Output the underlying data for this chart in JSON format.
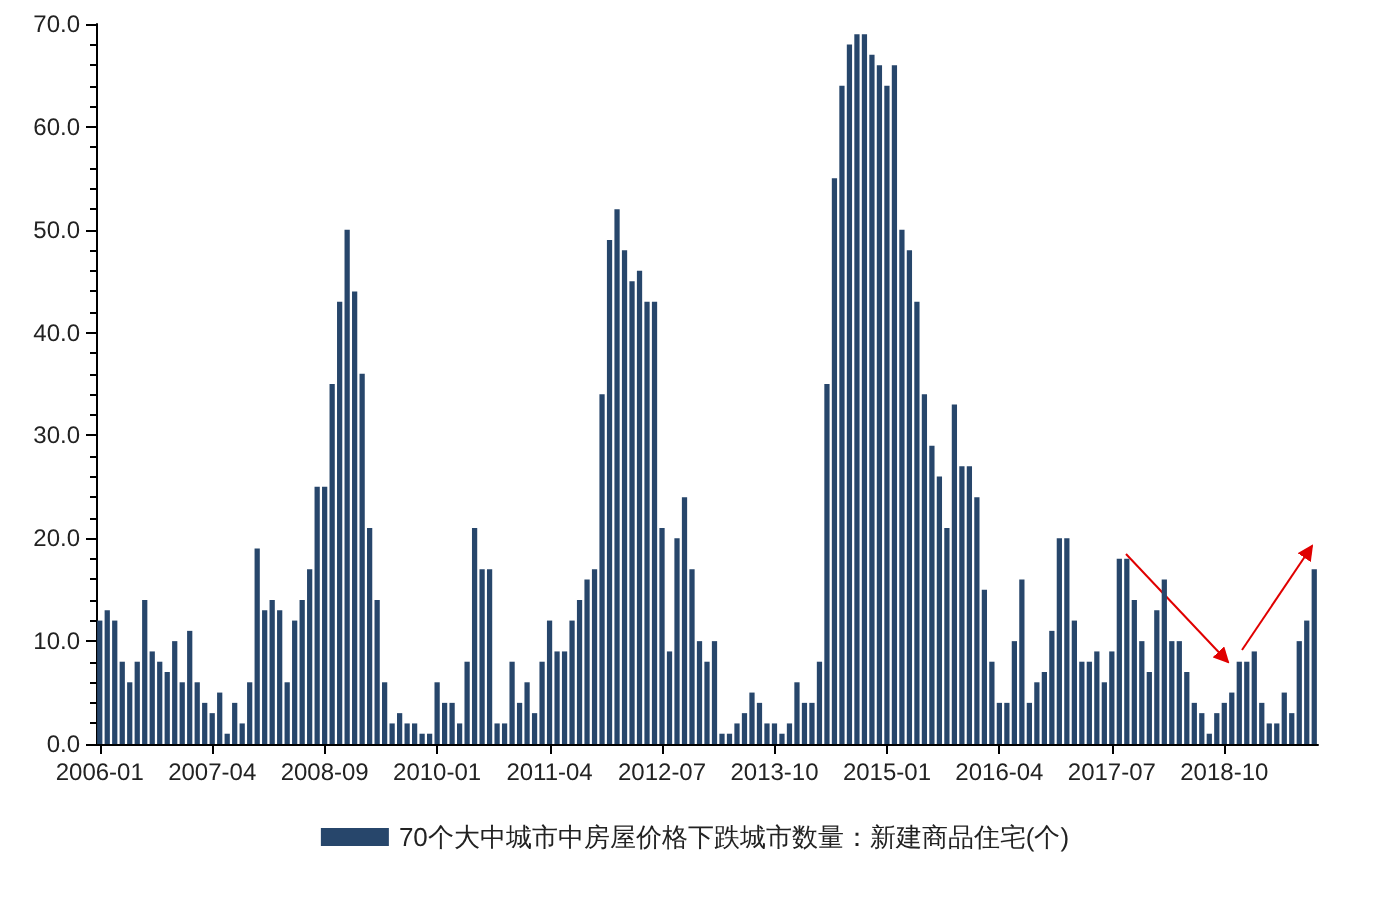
{
  "chart_data": {
    "type": "bar",
    "categories": [
      "2006-01",
      null,
      null,
      null,
      null,
      null,
      null,
      null,
      null,
      null,
      null,
      null,
      null,
      null,
      null,
      "2007-04",
      null,
      null,
      null,
      null,
      null,
      null,
      null,
      null,
      null,
      null,
      null,
      null,
      null,
      null,
      "2008-09",
      null,
      null,
      null,
      null,
      null,
      null,
      null,
      null,
      null,
      null,
      null,
      null,
      null,
      null,
      "2010-01",
      null,
      null,
      null,
      null,
      null,
      null,
      null,
      null,
      null,
      null,
      null,
      null,
      null,
      null,
      "2011-04",
      null,
      null,
      null,
      null,
      null,
      null,
      null,
      null,
      null,
      null,
      null,
      null,
      null,
      null,
      "2012-07",
      null,
      null,
      null,
      null,
      null,
      null,
      null,
      null,
      null,
      null,
      null,
      null,
      null,
      null,
      "2013-10",
      null,
      null,
      null,
      null,
      null,
      null,
      null,
      null,
      null,
      null,
      null,
      null,
      null,
      null,
      "2015-01",
      null,
      null,
      null,
      null,
      null,
      null,
      null,
      null,
      null,
      null,
      null,
      null,
      null,
      null,
      "2016-04",
      null,
      null,
      null,
      null,
      null,
      null,
      null,
      null,
      null,
      null,
      null,
      null,
      null,
      null,
      "2017-07",
      null,
      null,
      null,
      null,
      null,
      null,
      null,
      null,
      null,
      null,
      null,
      null,
      null,
      null,
      "2018-10",
      null,
      null,
      null,
      null,
      null,
      null,
      null,
      null,
      null,
      null,
      null,
      null
    ],
    "series": [
      {
        "name": "70个大中城市中房屋价格下跌城市数量：新建商品住宅(个)",
        "color": "#27466b",
        "values": [
          12,
          13,
          12,
          8,
          6,
          8,
          14,
          9,
          8,
          7,
          10,
          6,
          11,
          6,
          4,
          3,
          5,
          1,
          4,
          2,
          6,
          19,
          13,
          14,
          13,
          6,
          12,
          14,
          17,
          25,
          25,
          35,
          43,
          50,
          44,
          36,
          21,
          14,
          6,
          2,
          3,
          2,
          2,
          1,
          1,
          6,
          4,
          4,
          2,
          8,
          21,
          17,
          17,
          2,
          2,
          8,
          4,
          6,
          3,
          8,
          12,
          9,
          9,
          12,
          14,
          16,
          17,
          34,
          49,
          52,
          48,
          45,
          46,
          43,
          43,
          21,
          9,
          20,
          24,
          17,
          10,
          8,
          10,
          1,
          1,
          2,
          3,
          5,
          4,
          2,
          2,
          1,
          2,
          6,
          4,
          4,
          8,
          35,
          55,
          64,
          68,
          69,
          69,
          67,
          66,
          64,
          66,
          50,
          48,
          43,
          34,
          29,
          26,
          21,
          33,
          27,
          27,
          24,
          15,
          8,
          4,
          4,
          10,
          16,
          4,
          6,
          7,
          11,
          20,
          20,
          12,
          8,
          8,
          9,
          6,
          9,
          18,
          18,
          14,
          10,
          7,
          13,
          16,
          10,
          10,
          7,
          4,
          3,
          1,
          3,
          4,
          5,
          8,
          8,
          9,
          4,
          2,
          2,
          5,
          3,
          10,
          12,
          17
        ]
      }
    ],
    "ylim": [
      0,
      70
    ],
    "yticks": [
      {
        "value": 0,
        "label": "0.0"
      },
      {
        "value": 10,
        "label": "10.0"
      },
      {
        "value": 20,
        "label": "20.0"
      },
      {
        "value": 30,
        "label": "30.0"
      },
      {
        "value": 40,
        "label": "40.0"
      },
      {
        "value": 50,
        "label": "50.0"
      },
      {
        "value": 60,
        "label": "60.0"
      },
      {
        "value": 70,
        "label": "70.0"
      }
    ],
    "grid": false,
    "legend": "bottom"
  }
}
